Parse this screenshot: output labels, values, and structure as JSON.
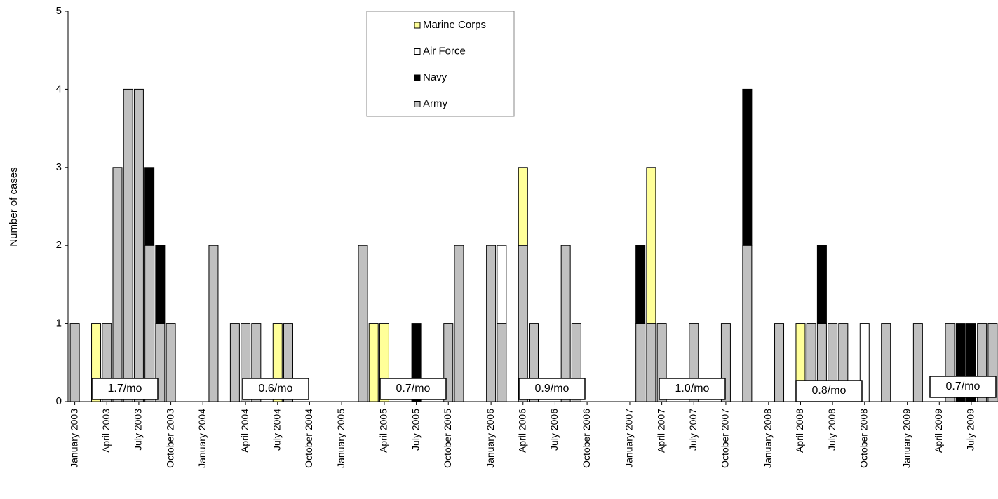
{
  "chart_data": {
    "type": "stacked_bar",
    "y_label": "Number of cases",
    "categories": [
      "January 2003",
      null,
      null,
      "April 2003",
      null,
      null,
      "July 2003",
      null,
      null,
      "October 2003",
      null,
      null,
      "January 2004",
      null,
      null,
      null,
      "April 2004",
      null,
      null,
      "July 2004",
      null,
      null,
      "October 2004",
      null,
      null,
      "January 2005",
      null,
      null,
      null,
      "April 2005",
      null,
      null,
      "July 2005",
      null,
      null,
      "October 2005",
      null,
      null,
      null,
      "January 2006",
      null,
      null,
      "April 2006",
      null,
      null,
      "July 2006",
      null,
      null,
      "October 2006",
      null,
      null,
      null,
      "January 2007",
      null,
      null,
      "April 2007",
      null,
      null,
      "July 2007",
      null,
      null,
      "October 2007",
      null,
      null,
      null,
      "January 2008",
      null,
      null,
      "April 2008",
      null,
      null,
      "July 2008",
      null,
      null,
      "October 2008",
      null,
      null,
      null,
      "January 2009",
      null,
      null,
      "April 2009",
      null,
      null,
      "July 2009",
      null,
      null
    ],
    "series": [
      {
        "name": "Army",
        "color": "#c0c0c0",
        "values": [
          1,
          0,
          0,
          1,
          3,
          4,
          4,
          2,
          1,
          1,
          0,
          0,
          0,
          2,
          0,
          1,
          1,
          1,
          0,
          0,
          1,
          0,
          0,
          0,
          0,
          0,
          0,
          2,
          0,
          0,
          0,
          0,
          0,
          0,
          0,
          1,
          2,
          0,
          0,
          2,
          1,
          0,
          2,
          1,
          0,
          0,
          2,
          1,
          0,
          0,
          0,
          0,
          0,
          1,
          1,
          1,
          0,
          0,
          1,
          0,
          0,
          1,
          0,
          2,
          0,
          0,
          1,
          0,
          0,
          1,
          1,
          1,
          1,
          0,
          0,
          0,
          1,
          0,
          0,
          1,
          0,
          0,
          1,
          0,
          0,
          1,
          1
        ]
      },
      {
        "name": "Navy",
        "color": "#000000",
        "values": [
          0,
          0,
          0,
          0,
          0,
          0,
          0,
          1,
          1,
          0,
          0,
          0,
          0,
          0,
          0,
          0,
          0,
          0,
          0,
          0,
          0,
          0,
          0,
          0,
          0,
          0,
          0,
          0,
          0,
          0,
          0,
          0,
          1,
          0,
          0,
          0,
          0,
          0,
          0,
          0,
          0,
          0,
          0,
          0,
          0,
          0,
          0,
          0,
          0,
          0,
          0,
          0,
          0,
          1,
          0,
          0,
          0,
          0,
          0,
          0,
          0,
          0,
          0,
          2,
          0,
          0,
          0,
          0,
          0,
          0,
          1,
          0,
          0,
          0,
          0,
          0,
          0,
          0,
          0,
          0,
          0,
          0,
          0,
          1,
          1,
          0,
          0
        ]
      },
      {
        "name": "Air Force",
        "color": "#ffffff",
        "values": [
          0,
          0,
          0,
          0,
          0,
          0,
          0,
          0,
          0,
          0,
          0,
          0,
          0,
          0,
          0,
          0,
          0,
          0,
          0,
          0,
          0,
          0,
          0,
          0,
          0,
          0,
          0,
          0,
          0,
          0,
          0,
          0,
          0,
          0,
          0,
          0,
          0,
          0,
          0,
          0,
          1,
          0,
          0,
          0,
          0,
          0,
          0,
          0,
          0,
          0,
          0,
          0,
          0,
          0,
          0,
          0,
          0,
          0,
          0,
          0,
          0,
          0,
          0,
          0,
          0,
          0,
          0,
          0,
          0,
          0,
          0,
          0,
          0,
          0,
          1,
          0,
          0,
          0,
          0,
          0,
          0,
          0,
          0,
          0,
          0,
          0,
          0
        ]
      },
      {
        "name": "Marine Corps",
        "color": "#ffff99",
        "values": [
          0,
          0,
          1,
          0,
          0,
          0,
          0,
          0,
          0,
          0,
          0,
          0,
          0,
          0,
          0,
          0,
          0,
          0,
          0,
          1,
          0,
          0,
          0,
          0,
          0,
          0,
          0,
          0,
          1,
          1,
          0,
          0,
          0,
          0,
          0,
          0,
          0,
          0,
          0,
          0,
          0,
          0,
          1,
          0,
          0,
          0,
          0,
          0,
          0,
          0,
          0,
          0,
          0,
          0,
          2,
          0,
          0,
          0,
          0,
          0,
          0,
          0,
          0,
          0,
          0,
          0,
          0,
          0,
          1,
          0,
          0,
          0,
          0,
          0,
          0,
          0,
          0,
          0,
          0,
          0,
          0,
          0,
          0,
          0,
          0,
          0,
          0
        ]
      }
    ],
    "ylim": [
      0,
      5
    ],
    "yticks": [
      0,
      1,
      2,
      3,
      4,
      5
    ],
    "grid": false,
    "annotations": [
      "1.7/mo",
      "0.6/mo",
      "0.7/mo",
      "0.9/mo",
      "1.0/mo",
      "0.8/mo",
      "0.7/mo"
    ]
  }
}
